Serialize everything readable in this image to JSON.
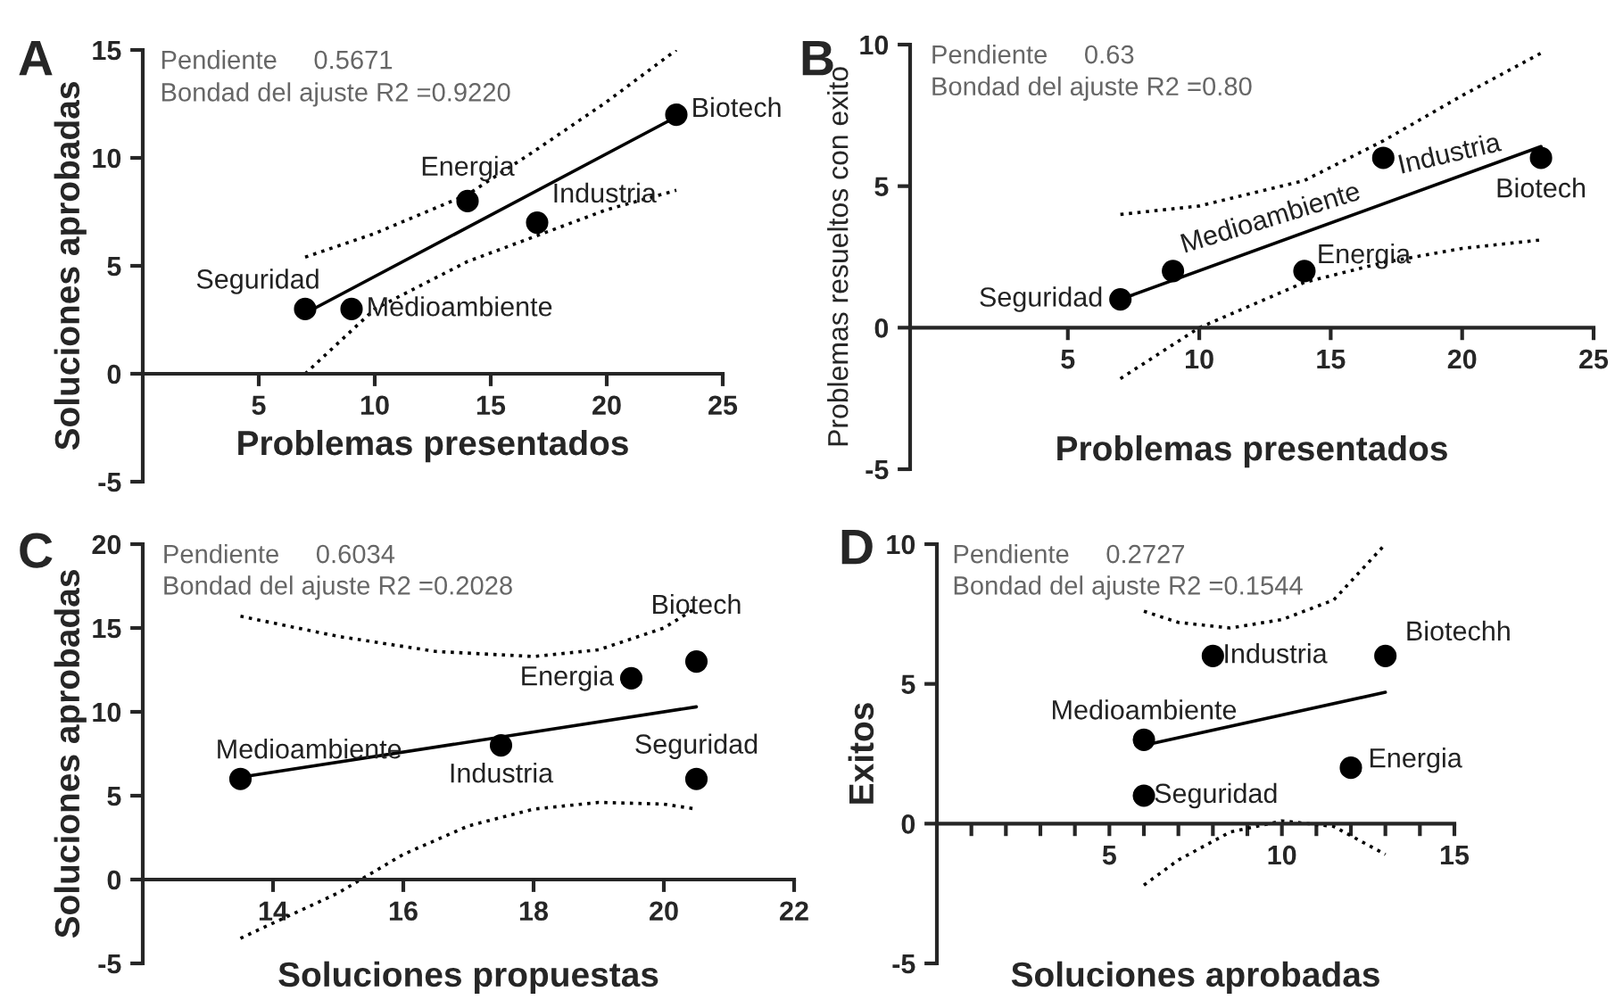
{
  "chart_data": [
    {
      "type": "scatter",
      "title": "A",
      "xlabel": "Problemas presentados",
      "ylabel": "Soluciones aprobadas",
      "xlim": [
        0,
        25
      ],
      "ylim": [
        -5,
        15
      ],
      "xticks": [
        5,
        10,
        15,
        20,
        25
      ],
      "yticks": [
        -5,
        0,
        5,
        10,
        15
      ],
      "grid": false,
      "legend": false,
      "marker": "circle",
      "series": [
        {
          "color": "#000000",
          "x": [
            7,
            9,
            14,
            17,
            23
          ],
          "values": [
            3,
            3,
            8,
            7,
            12
          ]
        },
        {
          "type": "line",
          "color": "#000000",
          "line_style": "solid",
          "marker": "none",
          "x": [
            7,
            23
          ],
          "values": [
            2.8,
            11.9
          ]
        },
        {
          "type": "line",
          "color": "#000000",
          "line_style": "dotted",
          "marker": "none",
          "x": [
            7,
            10,
            14,
            17,
            20,
            23
          ],
          "values": [
            5.4,
            6.5,
            8.3,
            10.4,
            12.6,
            15
          ]
        },
        {
          "type": "line",
          "color": "#000000",
          "line_style": "dotted",
          "marker": "none",
          "x": [
            7,
            10,
            14,
            17,
            20,
            23
          ],
          "values": [
            0,
            3,
            5.2,
            6.4,
            7.6,
            8.5
          ]
        }
      ],
      "annotations": [
        "Pendiente     0.5671",
        "Bondad del ajuste R2 =0.9220",
        {
          "text": "Seguridad",
          "x": 7,
          "y": 3
        },
        {
          "text": "Medioambiente",
          "x": 9,
          "y": 3
        },
        {
          "text": "Energia",
          "x": 14,
          "y": 8
        },
        {
          "text": "Industria",
          "x": 17,
          "y": 7
        },
        {
          "text": "Biotech",
          "x": 23,
          "y": 12
        }
      ]
    },
    {
      "type": "scatter",
      "title": "B",
      "xlabel": "Problemas presentados",
      "ylabel": "Problemas resueltos con exito",
      "xlim": [
        -1,
        25
      ],
      "ylim": [
        -5,
        10
      ],
      "xticks": [
        5,
        10,
        15,
        20,
        25
      ],
      "yticks": [
        -5,
        0,
        5,
        10
      ],
      "grid": false,
      "legend": false,
      "marker": "circle",
      "series": [
        {
          "color": "#000000",
          "x": [
            7,
            9,
            14,
            17,
            23
          ],
          "values": [
            1,
            2,
            2,
            6,
            6
          ]
        },
        {
          "type": "line",
          "color": "#000000",
          "line_style": "solid",
          "marker": "none",
          "x": [
            7.3,
            23
          ],
          "values": [
            1.1,
            6.4
          ]
        },
        {
          "type": "line",
          "color": "#000000",
          "line_style": "dotted",
          "marker": "none",
          "x": [
            7,
            10,
            14,
            17,
            20,
            23
          ],
          "values": [
            4,
            4.3,
            5.2,
            6.6,
            8.2,
            9.7
          ]
        },
        {
          "type": "line",
          "color": "#000000",
          "line_style": "dotted",
          "marker": "none",
          "x": [
            7,
            10,
            14,
            17,
            20,
            23
          ],
          "values": [
            -1.8,
            0,
            1.6,
            2.3,
            2.8,
            3.1
          ]
        }
      ],
      "annotations": [
        "Pendiente     0.63",
        "Bondad del ajuste R2 =0.80",
        {
          "text": "Seguridad",
          "x": 7,
          "y": 1
        },
        {
          "text": "Medioambiente",
          "x": 9,
          "y": 2
        },
        {
          "text": "Energia",
          "x": 14,
          "y": 2
        },
        {
          "text": "Industria",
          "x": 17,
          "y": 6
        },
        {
          "text": "Biotech",
          "x": 23,
          "y": 6
        }
      ]
    },
    {
      "type": "scatter",
      "title": "C",
      "xlabel": "Soluciones propuestas",
      "ylabel": "Soluciones aprobadas",
      "xlim": [
        12,
        22
      ],
      "ylim": [
        -5,
        20
      ],
      "xticks": [
        14,
        16,
        18,
        20,
        22
      ],
      "yticks": [
        -5,
        0,
        5,
        10,
        15,
        20
      ],
      "grid": false,
      "legend": false,
      "marker": "circle",
      "series": [
        {
          "color": "#000000",
          "x": [
            13.5,
            17.5,
            19.5,
            20.5,
            20.5
          ],
          "values": [
            6,
            8,
            12,
            13,
            6
          ]
        },
        {
          "type": "line",
          "color": "#000000",
          "line_style": "solid",
          "marker": "none",
          "x": [
            13.5,
            20.5
          ],
          "values": [
            6.1,
            10.3
          ]
        },
        {
          "type": "line",
          "color": "#000000",
          "line_style": "dotted",
          "marker": "none",
          "x": [
            13.5,
            15,
            16.5,
            18,
            19,
            20,
            20.5
          ],
          "values": [
            15.7,
            14.5,
            13.6,
            13.3,
            13.7,
            15,
            16.2
          ]
        },
        {
          "type": "line",
          "color": "#000000",
          "line_style": "dotted",
          "marker": "none",
          "x": [
            13.5,
            15,
            16,
            17,
            18,
            19,
            20,
            20.5
          ],
          "values": [
            -3.5,
            -0.8,
            1.5,
            3.2,
            4.2,
            4.6,
            4.5,
            4.2
          ]
        }
      ],
      "annotations": [
        "Pendiente     0.6034",
        "Bondad del ajuste R2 =0.2028",
        {
          "text": "Medioambiente",
          "x": 13.5,
          "y": 6
        },
        {
          "text": "Industria",
          "x": 17.5,
          "y": 8
        },
        {
          "text": "Energia",
          "x": 19.5,
          "y": 12
        },
        {
          "text": "Biotech",
          "x": 20.5,
          "y": 13
        },
        {
          "text": "Seguridad",
          "x": 20.5,
          "y": 6
        }
      ]
    },
    {
      "type": "scatter",
      "title": "D",
      "xlabel": "Soluciones aprobadas",
      "ylabel": "Exitos",
      "xlim": [
        0,
        15
      ],
      "ylim": [
        -5,
        10
      ],
      "xticks": [
        {
          "value": 1,
          "label": null
        },
        {
          "value": 2,
          "label": null
        },
        {
          "value": 3,
          "label": null
        },
        {
          "value": 4,
          "label": null
        },
        5,
        {
          "value": 6,
          "label": null
        },
        {
          "value": 7,
          "label": null
        },
        {
          "value": 8,
          "label": null
        },
        {
          "value": 9,
          "label": null
        },
        10,
        {
          "value": 11,
          "label": null
        },
        {
          "value": 12,
          "label": null
        },
        {
          "value": 13,
          "label": null
        },
        {
          "value": 14,
          "label": null
        },
        15
      ],
      "yticks": [
        -5,
        0,
        5,
        10
      ],
      "grid": false,
      "legend": false,
      "marker": "circle",
      "series": [
        {
          "color": "#000000",
          "x": [
            8,
            13,
            6,
            12,
            6
          ],
          "values": [
            6,
            6,
            3,
            2,
            1
          ]
        },
        {
          "type": "line",
          "color": "#000000",
          "line_style": "solid",
          "marker": "none",
          "x": [
            6,
            13
          ],
          "values": [
            2.8,
            4.7
          ]
        },
        {
          "type": "line",
          "color": "#000000",
          "line_style": "dotted",
          "marker": "none",
          "x": [
            6,
            7,
            8.5,
            10,
            11.5,
            13
          ],
          "values": [
            7.6,
            7.2,
            7,
            7.3,
            8,
            10
          ]
        },
        {
          "type": "line",
          "color": "#000000",
          "line_style": "dotted",
          "marker": "none",
          "x": [
            6,
            7,
            8.5,
            10,
            11.5,
            13
          ],
          "values": [
            -2.2,
            -1.3,
            -0.3,
            0.1,
            -0.1,
            -1.1
          ]
        }
      ],
      "annotations": [
        "Pendiente     0.2727",
        "Bondad del ajuste R2 =0.1544",
        {
          "text": "Industria",
          "x": 8,
          "y": 6
        },
        {
          "text": "Biotechh",
          "x": 13,
          "y": 6
        },
        {
          "text": "Medioambiente",
          "x": 6,
          "y": 3
        },
        {
          "text": "Energia",
          "x": 12,
          "y": 2
        },
        {
          "text": "Seguridad",
          "x": 6,
          "y": 1
        }
      ]
    }
  ]
}
